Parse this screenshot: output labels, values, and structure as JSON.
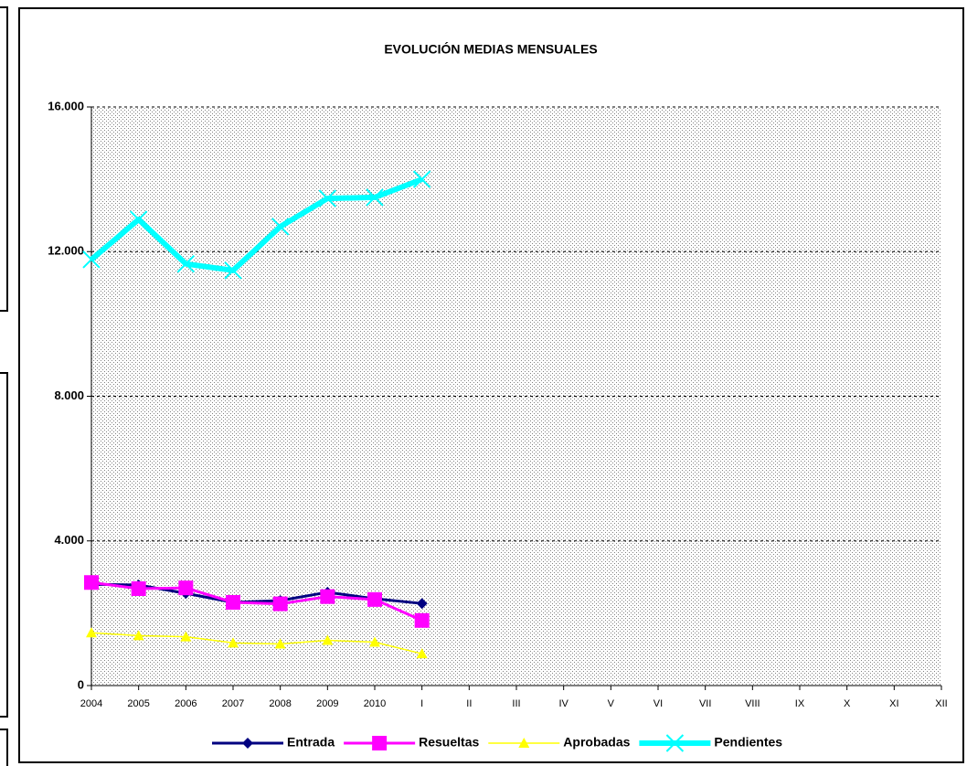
{
  "chart_data": {
    "type": "line",
    "title": "EVOLUCIÓN MEDIAS MENSUALES",
    "categories": [
      "2004",
      "2005",
      "2006",
      "2007",
      "2008",
      "2009",
      "2010",
      "I",
      "II",
      "III",
      "IV",
      "V",
      "VI",
      "VII",
      "VIII",
      "IX",
      "X",
      "XI",
      "XII"
    ],
    "series": [
      {
        "name": "Entrada",
        "color": "#000080",
        "marker": "diamond",
        "values": [
          2800,
          2780,
          2550,
          2300,
          2350,
          2580,
          2400,
          2270,
          null,
          null,
          null,
          null,
          null,
          null,
          null,
          null,
          null,
          null,
          null
        ]
      },
      {
        "name": "Resueltas",
        "color": "#FF00FF",
        "marker": "square",
        "values": [
          2850,
          2680,
          2700,
          2300,
          2260,
          2460,
          2380,
          1800,
          null,
          null,
          null,
          null,
          null,
          null,
          null,
          null,
          null,
          null,
          null
        ]
      },
      {
        "name": "Aprobadas",
        "color": "#FFFF00",
        "marker": "triangle",
        "values": [
          1460,
          1380,
          1350,
          1180,
          1150,
          1250,
          1200,
          880,
          null,
          null,
          null,
          null,
          null,
          null,
          null,
          null,
          null,
          null,
          null
        ]
      },
      {
        "name": "Pendientes",
        "color": "#00FFFF",
        "marker": "x",
        "values": [
          11780,
          12890,
          11660,
          11480,
          12690,
          13470,
          13500,
          14000,
          null,
          null,
          null,
          null,
          null,
          null,
          null,
          null,
          null,
          null,
          null
        ]
      }
    ],
    "ylim": [
      0,
      16000
    ],
    "yticks": [
      0,
      {
        "value": 4000,
        "label": "4.000"
      },
      {
        "value": 8000,
        "label": "8.000"
      },
      {
        "value": 12000,
        "label": "12.000"
      },
      {
        "value": 16000,
        "label": "16.000"
      }
    ],
    "grid": true,
    "legend": "bottom"
  }
}
